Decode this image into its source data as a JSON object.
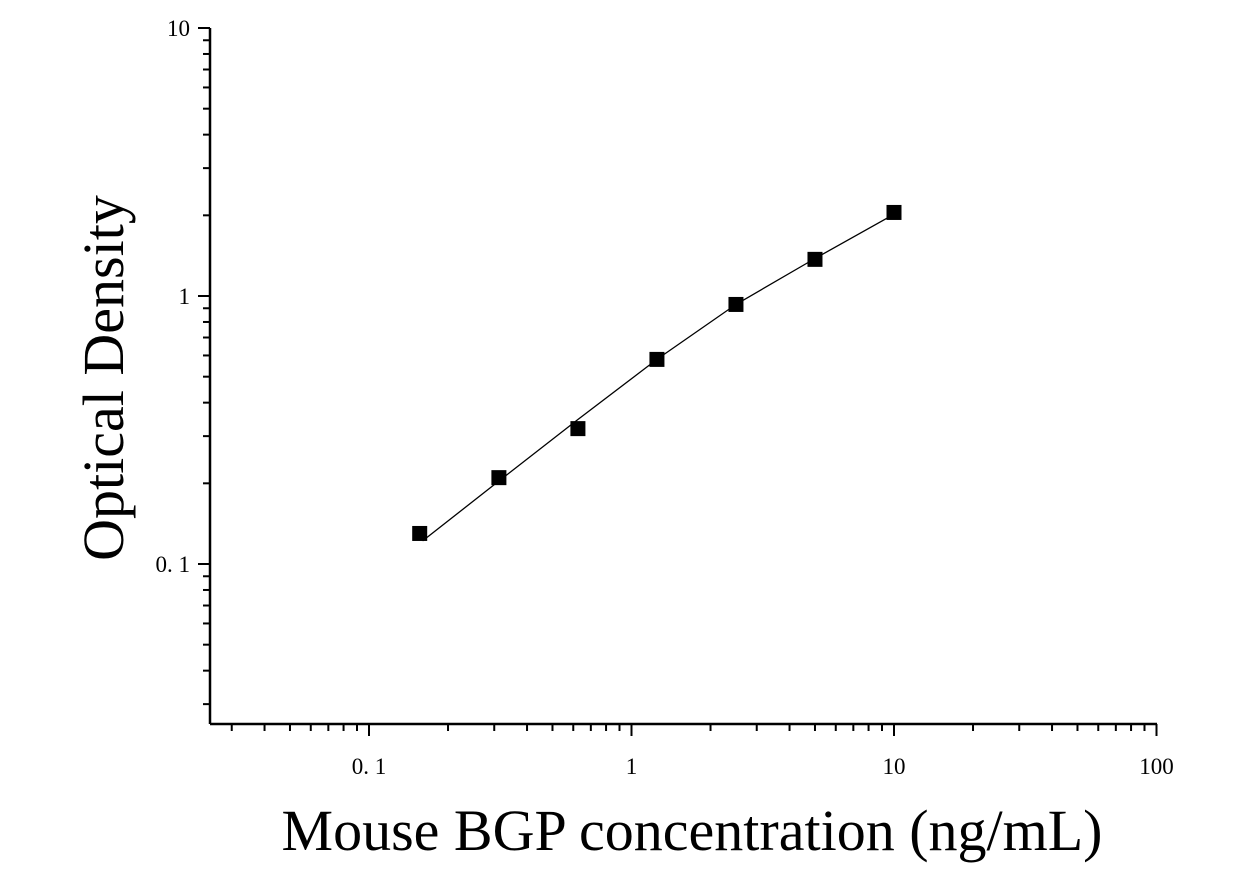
{
  "chart_data": {
    "type": "scatter",
    "title": "",
    "xlabel": "Mouse BGP concentration (ng/mL)",
    "ylabel": "Optical Density",
    "x_scale": "log",
    "y_scale": "log",
    "xlim": [
      0.025,
      100
    ],
    "ylim": [
      0.025,
      10
    ],
    "x_ticks": [
      {
        "value": 0.1,
        "label": "0. 1"
      },
      {
        "value": 1,
        "label": "1"
      },
      {
        "value": 10,
        "label": "10"
      },
      {
        "value": 100,
        "label": "100"
      }
    ],
    "y_ticks": [
      {
        "value": 0.1,
        "label": "0. 1"
      },
      {
        "value": 1,
        "label": "1"
      },
      {
        "value": 10,
        "label": "10"
      }
    ],
    "grid": false,
    "legend": "none",
    "marker": "square",
    "color": "#000000",
    "points": [
      {
        "x": 0.156,
        "y": 0.13
      },
      {
        "x": 0.3125,
        "y": 0.21
      },
      {
        "x": 0.625,
        "y": 0.32
      },
      {
        "x": 1.25,
        "y": 0.58
      },
      {
        "x": 2.5,
        "y": 0.93
      },
      {
        "x": 5,
        "y": 1.37
      },
      {
        "x": 10,
        "y": 2.05
      }
    ],
    "fit_curve": [
      {
        "x": 0.16,
        "y": 0.122
      },
      {
        "x": 0.3125,
        "y": 0.204
      },
      {
        "x": 0.625,
        "y": 0.346
      },
      {
        "x": 1.25,
        "y": 0.58
      },
      {
        "x": 2.5,
        "y": 0.93
      },
      {
        "x": 5,
        "y": 1.38
      },
      {
        "x": 10,
        "y": 2.02
      }
    ]
  }
}
